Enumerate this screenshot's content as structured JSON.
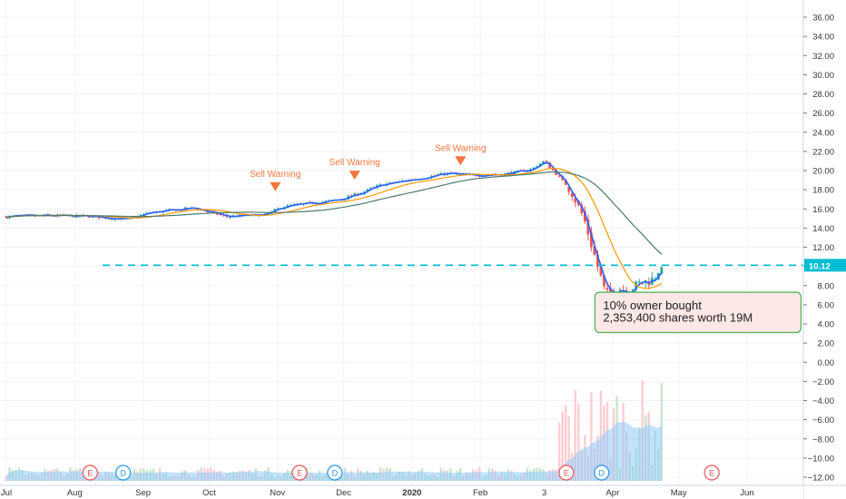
{
  "chart_data": {
    "type": "candlestick",
    "price_axis": {
      "ticks": [
        "36.00",
        "34.00",
        "32.00",
        "30.00",
        "28.00",
        "26.00",
        "24.00",
        "22.00",
        "20.00",
        "18.00",
        "16.00",
        "14.00",
        "12.00",
        "10.00",
        "8.00",
        "6.00",
        "4.00",
        "2.00",
        "0.00",
        "−2.00",
        "−4.00",
        "−6.00",
        "−8.00",
        "−10.00",
        "−12.00"
      ],
      "tick_values": [
        36,
        34,
        32,
        30,
        28,
        26,
        24,
        22,
        20,
        18,
        16,
        14,
        12,
        10,
        8,
        6,
        4,
        2,
        0,
        -2,
        -4,
        -6,
        -8,
        -10,
        -12
      ],
      "ylim": [
        -12.5,
        37
      ]
    },
    "time_axis": {
      "labels": [
        "Jul",
        "Aug",
        "Sep",
        "Oct",
        "Nov",
        "Dec",
        "2020",
        "Feb",
        "3",
        "Apr",
        "May",
        "Jun"
      ],
      "bold": [
        false,
        false,
        false,
        false,
        false,
        false,
        true,
        false,
        false,
        false,
        false,
        false
      ]
    },
    "last_price": {
      "label": "10.12",
      "value": 10.12,
      "color": "#00bcd4"
    },
    "sell_warnings": [
      {
        "label": "Sell Warning",
        "day": 122,
        "price": 18.6
      },
      {
        "label": "Sell Warning",
        "day": 158,
        "price": 19.8
      },
      {
        "label": "Sell Warning",
        "day": 206,
        "price": 21.3
      }
    ],
    "annotation": {
      "line1": "10% owner bought",
      "line2": "2,353,400 shares worth 19M"
    },
    "events": [
      {
        "letter": "E",
        "day": 38
      },
      {
        "letter": "D",
        "day": 53
      },
      {
        "letter": "E",
        "day": 133
      },
      {
        "letter": "D",
        "day": 149
      },
      {
        "letter": "E",
        "day": 254
      },
      {
        "letter": "D",
        "day": 270
      },
      {
        "letter": "E",
        "day": 320
      }
    ],
    "price_path": [
      [
        0,
        15.2
      ],
      [
        20,
        15.3
      ],
      [
        40,
        15.2
      ],
      [
        55,
        14.9
      ],
      [
        65,
        15.6
      ],
      [
        85,
        16.1
      ],
      [
        100,
        15.2
      ],
      [
        118,
        15.4
      ],
      [
        125,
        16.2
      ],
      [
        135,
        16.5
      ],
      [
        150,
        16.9
      ],
      [
        160,
        17.6
      ],
      [
        170,
        18.5
      ],
      [
        180,
        18.9
      ],
      [
        190,
        19.3
      ],
      [
        200,
        19.7
      ],
      [
        210,
        19.5
      ],
      [
        225,
        19.6
      ],
      [
        238,
        20.1
      ],
      [
        244,
        21.0
      ],
      [
        250,
        19.5
      ],
      [
        256,
        18.0
      ],
      [
        262,
        15.0
      ],
      [
        267,
        11.0
      ],
      [
        272,
        7.0
      ],
      [
        277,
        7.8
      ],
      [
        282,
        7.5
      ],
      [
        288,
        8.3
      ],
      [
        293,
        8.6
      ],
      [
        298,
        10.0
      ]
    ],
    "series": [
      {
        "name": "",
        "color": "#2962ff",
        "period": 5
      },
      {
        "name": "",
        "color": "#ff9800",
        "period": 20
      },
      {
        "name": "",
        "color": "#4b7b6a",
        "period": 50
      }
    ],
    "colors": {
      "up": "#26a69a",
      "down": "#ef5350",
      "volume_up": "#c8e6c9",
      "volume_down": "#ffcdd2",
      "volume_avg": "#90caf9",
      "sell_warning": "#f4763c"
    }
  }
}
